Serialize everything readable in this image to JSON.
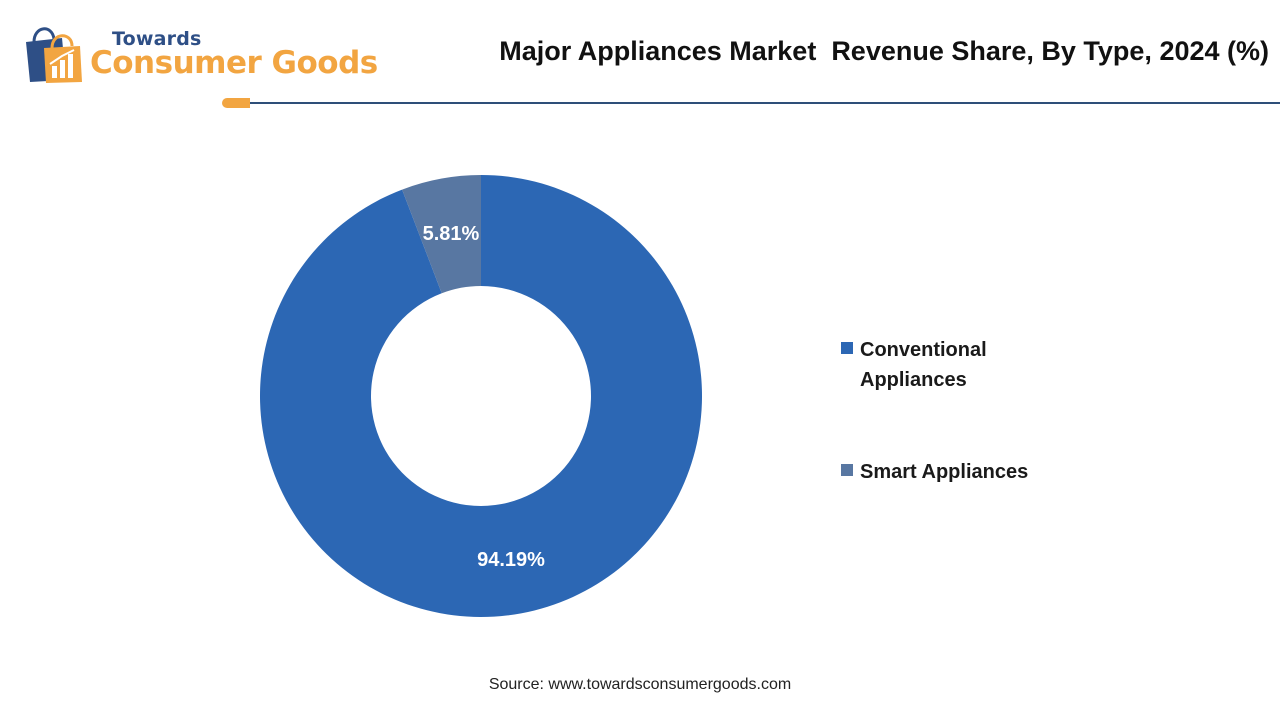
{
  "header": {
    "logo_top": "Towards",
    "logo_bottom": "Consumer Goods",
    "title": "Major Appliances Market  Revenue Share, By Type, 2024 (%)"
  },
  "colors": {
    "brand_orange": "#f2a541",
    "brand_navy": "#2e4f86",
    "rule": "#2e4f79"
  },
  "chart_data": {
    "type": "pie",
    "variant": "donut",
    "title": "Major Appliances Market  Revenue Share, By Type, 2024 (%)",
    "categories": [
      "Conventional Appliances",
      "Smart Appliances"
    ],
    "values": [
      94.19,
      5.81
    ],
    "data_labels": [
      "94.19%",
      "5.81%"
    ],
    "colors": [
      "#2c67b4",
      "#5877a2"
    ],
    "legend_position": "right"
  },
  "legend": {
    "items": [
      {
        "label": "Conventional Appliances",
        "color": "#2c67b4"
      },
      {
        "label": "Smart Appliances",
        "color": "#5877a2"
      }
    ]
  },
  "footer": {
    "source": "Source: www.towardsconsumergoods.com"
  }
}
